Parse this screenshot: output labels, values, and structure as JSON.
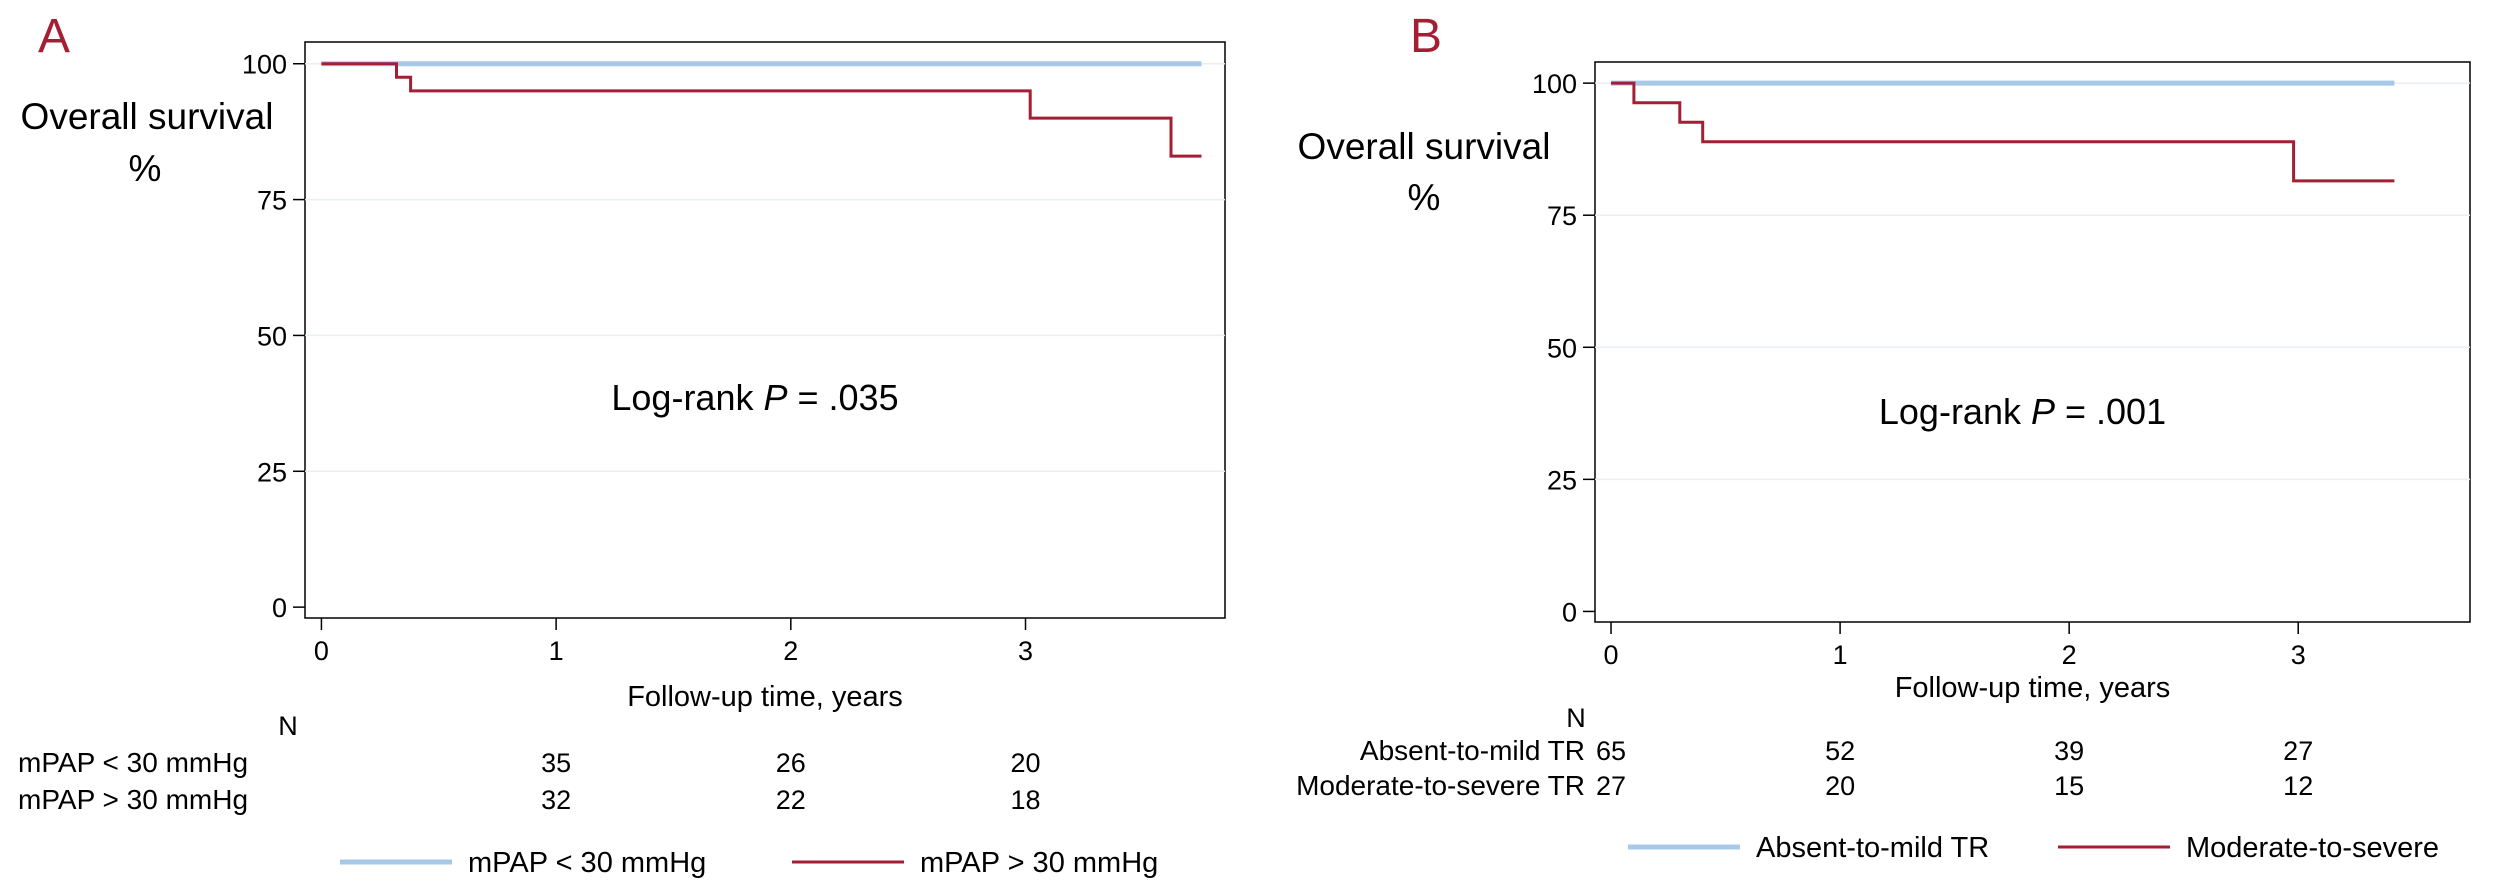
{
  "chart_data": [
    {
      "type": "line",
      "panel_label": "A",
      "ylabel_line1": "Overall survival",
      "ylabel_line2": "%",
      "xlabel": "Follow-up time, years",
      "xticks": [
        0,
        1,
        2,
        3
      ],
      "yticks": [
        0,
        25,
        50,
        75,
        100
      ],
      "xlim": [
        -0.07,
        3.85
      ],
      "ylim": [
        -2,
        104
      ],
      "annotation": {
        "prefix": "Log-rank ",
        "p": "P",
        "suffix": " = .035"
      },
      "risk_header": "N",
      "series": [
        {
          "name": "mPAP < 30 mmHg",
          "color": "#a8c8e8",
          "x": [
            0,
            3.75
          ],
          "y": [
            100,
            100
          ],
          "risk_values": [
            "35",
            "26",
            "20"
          ]
        },
        {
          "name": "mPAP > 30 mmHg",
          "color": "#a41e34",
          "x": [
            0,
            0.32,
            0.32,
            0.38,
            0.38,
            3.02,
            3.02,
            3.62,
            3.62,
            3.75
          ],
          "y": [
            100,
            100,
            97.5,
            97.5,
            95,
            95,
            90,
            90,
            83,
            83
          ],
          "risk_values": [
            "32",
            "22",
            "18"
          ]
        }
      ]
    },
    {
      "type": "line",
      "panel_label": "B",
      "ylabel_line1": "Overall survival",
      "ylabel_line2": "%",
      "xlabel": "Follow-up time, years",
      "xticks": [
        0,
        1,
        2,
        3
      ],
      "yticks": [
        0,
        25,
        50,
        75,
        100
      ],
      "xlim": [
        -0.07,
        3.75
      ],
      "ylim": [
        -2,
        104
      ],
      "annotation": {
        "prefix": "Log-rank ",
        "p": "P",
        "suffix": " = .001"
      },
      "risk_header": "N",
      "series": [
        {
          "name": "Absent-to-mild TR",
          "color": "#a8c8e8",
          "x": [
            0,
            3.42
          ],
          "y": [
            100,
            100
          ],
          "risk_values": [
            "65",
            "52",
            "39",
            "27"
          ]
        },
        {
          "name": "Moderate-to-severe TR",
          "legend_label": "Moderate-to-severe",
          "color": "#a41e34",
          "x": [
            0,
            0.1,
            0.1,
            0.3,
            0.3,
            0.4,
            0.4,
            2.98,
            2.98,
            3.42
          ],
          "y": [
            100,
            100,
            96.3,
            96.3,
            92.6,
            92.6,
            88.9,
            88.9,
            81.5,
            81.5
          ],
          "risk_values": [
            "27",
            "20",
            "15",
            "12"
          ]
        }
      ]
    }
  ]
}
